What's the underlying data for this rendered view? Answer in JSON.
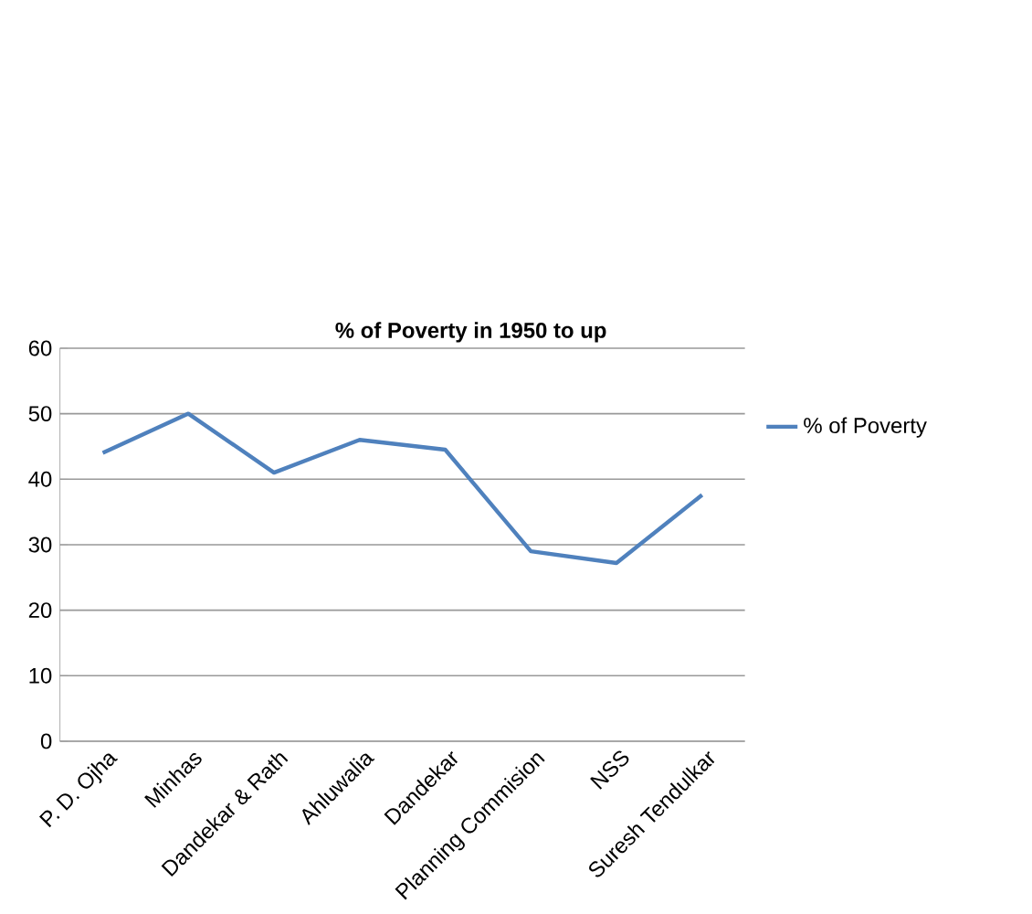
{
  "chart_data": {
    "type": "line",
    "title": "% of Poverty  in 1950 to up",
    "categories": [
      "P. D. Ojha",
      "Minhas",
      "Dandekar & Rath",
      "Ahluwalia",
      "Dandekar",
      "Planning Commision",
      "NSS",
      "Suresh Tendulkar"
    ],
    "series": [
      {
        "name": "% of Poverty",
        "color": "#4f81bd",
        "values": [
          44,
          50,
          41,
          46,
          44.5,
          29,
          27.2,
          37.6
        ]
      }
    ],
    "ylim": [
      0,
      60
    ],
    "yticks": [
      0,
      10,
      20,
      30,
      40,
      50,
      60
    ],
    "grid": "y",
    "legend": "right",
    "marker": "none",
    "line_style": "solid"
  }
}
